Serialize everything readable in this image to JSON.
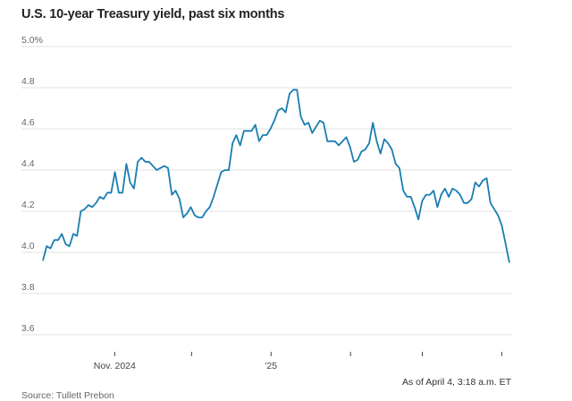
{
  "chart_data": {
    "type": "line",
    "title": "U.S. 10-year Treasury yield, past six months",
    "xlabel": "",
    "ylabel": "",
    "ylim": [
      3.6,
      5.0
    ],
    "yticks": [
      {
        "value": 5.0,
        "label": "5.0%"
      },
      {
        "value": 4.8,
        "label": "4.8"
      },
      {
        "value": 4.6,
        "label": "4.6"
      },
      {
        "value": 4.4,
        "label": "4.4"
      },
      {
        "value": 4.2,
        "label": "4.2"
      },
      {
        "value": 4.0,
        "label": "4.0"
      },
      {
        "value": 3.8,
        "label": "3.8"
      },
      {
        "value": 3.6,
        "label": "3.6"
      }
    ],
    "x_range_days": [
      0,
      182
    ],
    "xticks": [
      {
        "day": 28,
        "label": "Nov. 2024"
      },
      {
        "day": 58,
        "label": ""
      },
      {
        "day": 89,
        "label": "'25"
      },
      {
        "day": 120,
        "label": ""
      },
      {
        "day": 148,
        "label": ""
      },
      {
        "day": 179,
        "label": ""
      }
    ],
    "grid": true,
    "series": [
      {
        "name": "10-year yield",
        "color": "#1a7db0",
        "values": [
          3.96,
          4.03,
          4.02,
          4.06,
          4.06,
          4.09,
          4.04,
          4.03,
          4.09,
          4.08,
          4.2,
          4.21,
          4.23,
          4.22,
          4.24,
          4.27,
          4.26,
          4.29,
          4.29,
          4.39,
          4.29,
          4.29,
          4.43,
          4.34,
          4.31,
          4.44,
          4.46,
          4.44,
          4.44,
          4.42,
          4.4,
          4.41,
          4.42,
          4.41,
          4.28,
          4.3,
          4.26,
          4.17,
          4.19,
          4.22,
          4.18,
          4.17,
          4.17,
          4.2,
          4.22,
          4.27,
          4.33,
          4.39,
          4.4,
          4.4,
          4.53,
          4.57,
          4.52,
          4.59,
          4.59,
          4.59,
          4.62,
          4.54,
          4.57,
          4.57,
          4.6,
          4.64,
          4.69,
          4.7,
          4.68,
          4.77,
          4.79,
          4.79,
          4.66,
          4.62,
          4.63,
          4.58,
          4.61,
          4.64,
          4.63,
          4.54,
          4.54,
          4.54,
          4.52,
          4.54,
          4.56,
          4.51,
          4.44,
          4.45,
          4.49,
          4.5,
          4.53,
          4.63,
          4.54,
          4.48,
          4.55,
          4.53,
          4.5,
          4.43,
          4.41,
          4.3,
          4.27,
          4.27,
          4.22,
          4.16,
          4.25,
          4.28,
          4.28,
          4.3,
          4.22,
          4.28,
          4.31,
          4.27,
          4.31,
          4.3,
          4.28,
          4.24,
          4.24,
          4.26,
          4.34,
          4.32,
          4.35,
          4.36,
          4.24,
          4.21,
          4.18,
          4.13,
          4.04,
          3.95
        ]
      }
    ]
  },
  "footer": {
    "as_of": "As of April 4, 3:18 a.m. ET",
    "source": "Source: Tullett Prebon"
  }
}
